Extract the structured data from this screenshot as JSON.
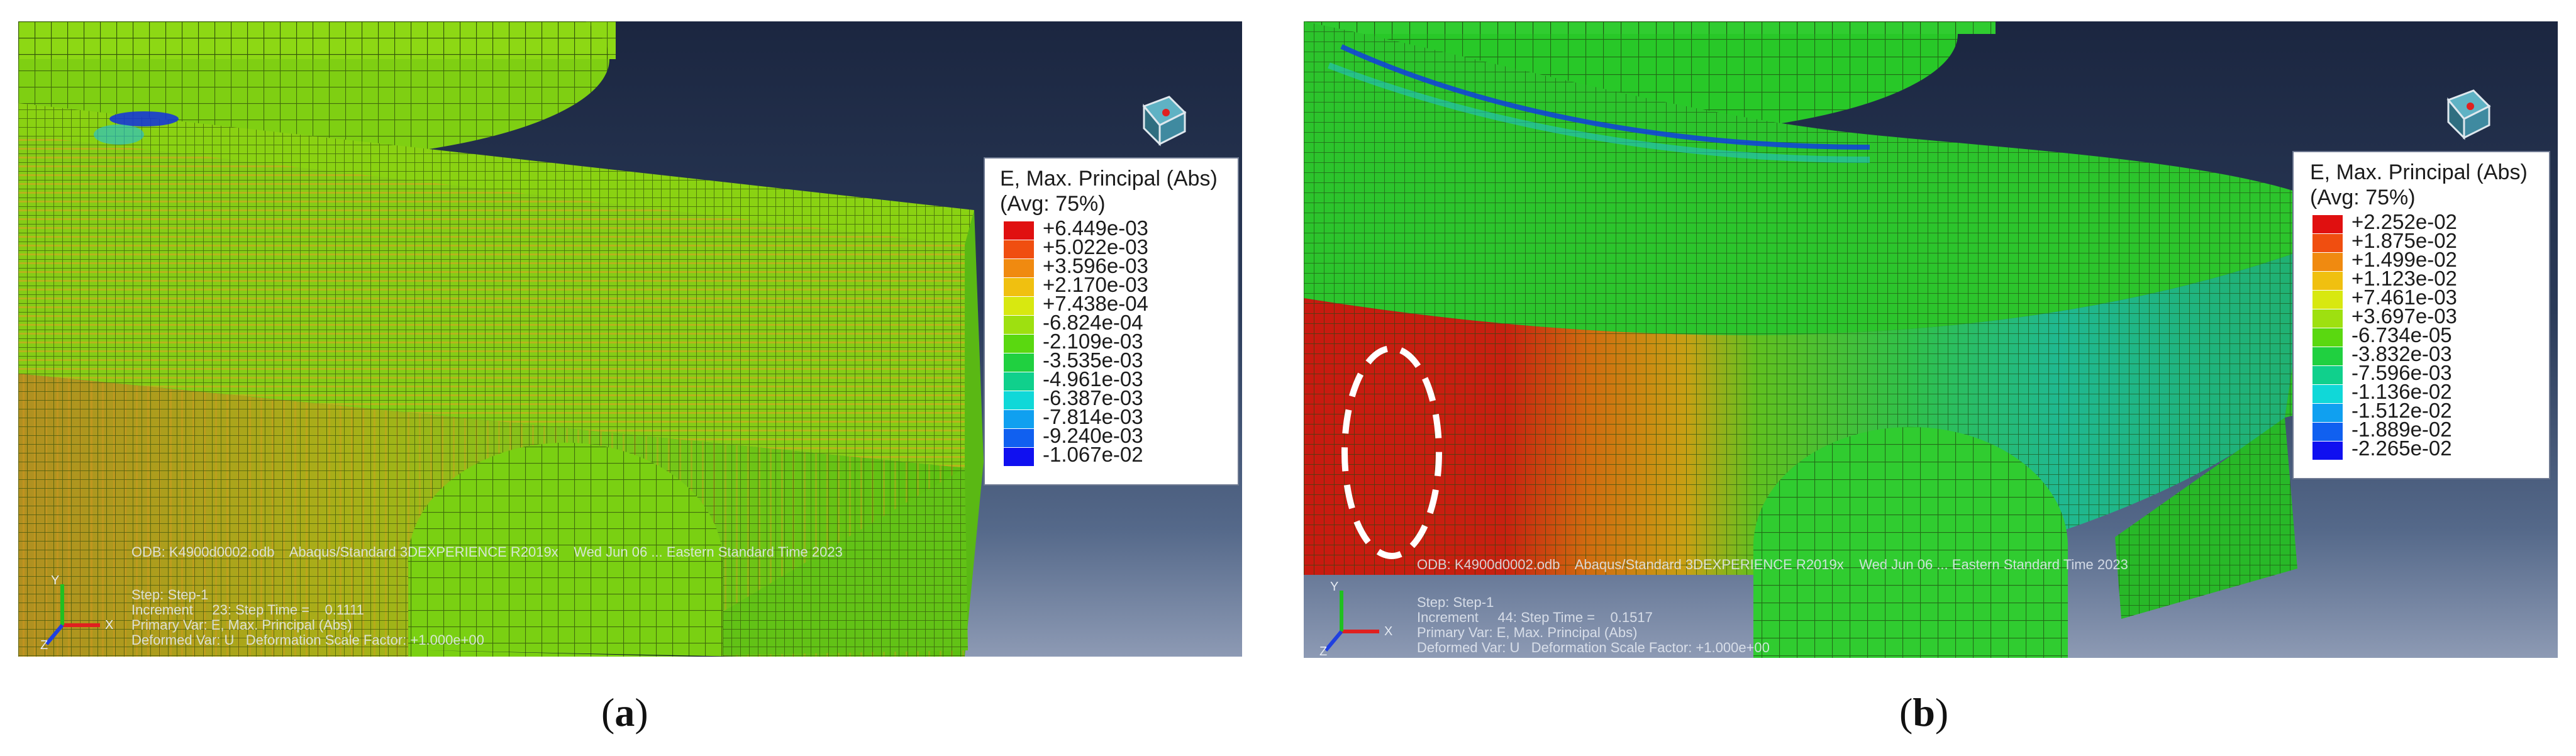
{
  "panels": [
    {
      "caption_open": "(",
      "caption_letter": "a",
      "caption_close": ")",
      "legend": {
        "title_line1": "E, Max. Principal (Abs)",
        "title_line2": "(Avg: 75%)",
        "entries": [
          {
            "value": "+6.449e-03",
            "color": "#e01010"
          },
          {
            "value": "+5.022e-03",
            "color": "#f04e10"
          },
          {
            "value": "+3.596e-03",
            "color": "#f08a10"
          },
          {
            "value": "+2.170e-03",
            "color": "#f0c010"
          },
          {
            "value": "+7.438e-04",
            "color": "#d8e810"
          },
          {
            "value": "-6.824e-04",
            "color": "#9ee010"
          },
          {
            "value": "-2.109e-03",
            "color": "#5ad810"
          },
          {
            "value": "-3.535e-03",
            "color": "#20d040"
          },
          {
            "value": "-4.961e-03",
            "color": "#10d08c"
          },
          {
            "value": "-6.387e-03",
            "color": "#10d8d8"
          },
          {
            "value": "-7.814e-03",
            "color": "#10a0f0"
          },
          {
            "value": "-9.240e-03",
            "color": "#1060f0"
          },
          {
            "value": "-1.067e-02",
            "color": "#1010f0"
          }
        ]
      },
      "info": {
        "odb": "ODB: K4900d0002.odb    Abaqus/Standard 3DEXPERIENCE R2019x    Wed Jun 06 ... Eastern Standard Time 2023",
        "step": "Step: Step-1",
        "increment": "Increment     23: Step Time =    0.1111",
        "primary": "Primary Var: E, Max. Principal (Abs)",
        "deformed": "Deformed Var: U   Deformation Scale Factor: +1.000e+00"
      },
      "triad": {
        "x": "X",
        "y": "Y",
        "z": "Z"
      }
    },
    {
      "caption_open": "(",
      "caption_letter": "b",
      "caption_close": ")",
      "legend": {
        "title_line1": "E, Max. Principal (Abs)",
        "title_line2": "(Avg: 75%)",
        "entries": [
          {
            "value": "+2.252e-02",
            "color": "#e01010"
          },
          {
            "value": "+1.875e-02",
            "color": "#f04e10"
          },
          {
            "value": "+1.499e-02",
            "color": "#f08a10"
          },
          {
            "value": "+1.123e-02",
            "color": "#f0c010"
          },
          {
            "value": "+7.461e-03",
            "color": "#d8e810"
          },
          {
            "value": "+3.697e-03",
            "color": "#9ee010"
          },
          {
            "value": "-6.734e-05",
            "color": "#5ad810"
          },
          {
            "value": "-3.832e-03",
            "color": "#20d040"
          },
          {
            "value": "-7.596e-03",
            "color": "#10d08c"
          },
          {
            "value": "-1.136e-02",
            "color": "#10d8d8"
          },
          {
            "value": "-1.512e-02",
            "color": "#10a0f0"
          },
          {
            "value": "-1.889e-02",
            "color": "#1060f0"
          },
          {
            "value": "-2.265e-02",
            "color": "#1010f0"
          }
        ]
      },
      "info": {
        "odb": "ODB: K4900d0002.odb    Abaqus/Standard 3DEXPERIENCE R2019x    Wed Jun 06 ... Eastern Standard Time 2023",
        "step": "Step: Step-1",
        "increment": "Increment     44: Step Time =    0.1517",
        "primary": "Primary Var: E, Max. Principal (Abs)",
        "deformed": "Deformed Var: U   Deformation Scale Factor: +1.000e+00"
      },
      "triad": {
        "x": "X",
        "y": "Y",
        "z": "Z"
      }
    }
  ]
}
